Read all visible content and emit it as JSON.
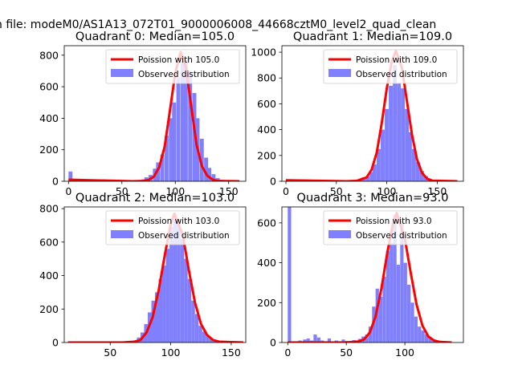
{
  "figure": {
    "suptitle": "n file: modeM0/AS1A13_072T01_9000006008_44668cztM0_level2_quad_clean"
  },
  "colors": {
    "poisson_line": "#ff0000",
    "histogram": "#8080ff",
    "axes": "#000000"
  },
  "chart_data": [
    {
      "type": "bar",
      "title": "Quadrant 0: Median=105.0",
      "xlim": [
        -4,
        166
      ],
      "ylim": [
        0,
        860
      ],
      "xticks": [
        0,
        50,
        100,
        150
      ],
      "yticks": [
        0,
        200,
        400,
        600,
        800
      ],
      "legend": {
        "placement": "top-right"
      },
      "series": [
        {
          "name": "Poission with 105.0",
          "kind": "line",
          "mean": 105.0,
          "peak": 820,
          "x": [
            0,
            60,
            70,
            75,
            80,
            85,
            90,
            95,
            100,
            105,
            110,
            115,
            120,
            125,
            130,
            135,
            140,
            160
          ],
          "y": [
            10,
            0,
            2,
            8,
            30,
            90,
            220,
            450,
            690,
            820,
            720,
            470,
            230,
            95,
            35,
            10,
            2,
            0
          ]
        },
        {
          "name": "Observed distribution",
          "kind": "histogram",
          "bin_width": 3.7,
          "bins": [
            [
              0,
              62
            ],
            [
              64,
              5
            ],
            [
              68,
              12
            ],
            [
              71,
              25
            ],
            [
              75,
              40
            ],
            [
              79,
              80
            ],
            [
              82,
              120
            ],
            [
              86,
              170
            ],
            [
              90,
              290
            ],
            [
              94,
              400
            ],
            [
              97,
              500
            ],
            [
              101,
              660
            ],
            [
              105,
              760
            ],
            [
              108,
              770
            ],
            [
              112,
              700
            ],
            [
              116,
              560
            ],
            [
              119,
              400
            ],
            [
              123,
              270
            ],
            [
              127,
              150
            ],
            [
              130,
              85
            ],
            [
              134,
              45
            ],
            [
              138,
              20
            ],
            [
              141,
              10
            ]
          ]
        }
      ]
    },
    {
      "type": "bar",
      "title": "Quadrant 1: Median=109.0",
      "xlim": [
        -4,
        176
      ],
      "ylim": [
        0,
        1050
      ],
      "xticks": [
        0,
        50,
        100,
        150
      ],
      "yticks": [
        0,
        200,
        400,
        600,
        800,
        1000
      ],
      "legend": {
        "placement": "top-right"
      },
      "series": [
        {
          "name": "Poission with 109.0",
          "kind": "line",
          "mean": 109.0,
          "peak": 1010,
          "x": [
            0,
            60,
            70,
            80,
            85,
            90,
            95,
            100,
            105,
            109,
            115,
            120,
            125,
            130,
            135,
            140,
            145,
            170
          ],
          "y": [
            8,
            0,
            3,
            30,
            90,
            220,
            450,
            720,
            930,
            1010,
            880,
            620,
            360,
            170,
            65,
            20,
            5,
            0
          ]
        },
        {
          "name": "Observed distribution",
          "kind": "histogram",
          "bin_width": 3.9,
          "bins": [
            [
              0,
              5
            ],
            [
              71,
              15
            ],
            [
              75,
              30
            ],
            [
              79,
              40
            ],
            [
              83,
              70
            ],
            [
              86,
              130
            ],
            [
              90,
              250
            ],
            [
              94,
              400
            ],
            [
              98,
              560
            ],
            [
              102,
              740
            ],
            [
              106,
              900
            ],
            [
              110,
              760
            ],
            [
              114,
              720
            ],
            [
              118,
              560
            ],
            [
              121,
              380
            ],
            [
              125,
              250
            ],
            [
              129,
              150
            ],
            [
              133,
              80
            ],
            [
              137,
              40
            ],
            [
              141,
              18
            ],
            [
              145,
              8
            ]
          ]
        }
      ]
    },
    {
      "type": "bar",
      "title": "Quadrant 2: Median=103.0",
      "xlim": [
        12,
        162
      ],
      "ylim": [
        0,
        810
      ],
      "xticks": [
        50,
        100,
        150
      ],
      "yticks": [
        0,
        200,
        400,
        600,
        800
      ],
      "legend": {
        "placement": "top-right"
      },
      "series": [
        {
          "name": "Poission with 103.0",
          "kind": "line",
          "mean": 103.0,
          "peak": 770,
          "x": [
            15,
            60,
            70,
            75,
            80,
            85,
            90,
            95,
            100,
            103,
            110,
            115,
            120,
            125,
            130,
            135,
            140,
            160
          ],
          "y": [
            0,
            0,
            5,
            15,
            60,
            150,
            310,
            520,
            710,
            770,
            640,
            430,
            240,
            110,
            45,
            15,
            5,
            0
          ]
        },
        {
          "name": "Observed distribution",
          "kind": "histogram",
          "bin_width": 3.0,
          "bins": [
            [
              66,
              5
            ],
            [
              69,
              12
            ],
            [
              72,
              30
            ],
            [
              75,
              60
            ],
            [
              78,
              110
            ],
            [
              81,
              180
            ],
            [
              84,
              250
            ],
            [
              87,
              300
            ],
            [
              90,
              380
            ],
            [
              93,
              460
            ],
            [
              96,
              560
            ],
            [
              99,
              690
            ],
            [
              102,
              740
            ],
            [
              105,
              720
            ],
            [
              108,
              620
            ],
            [
              111,
              500
            ],
            [
              114,
              380
            ],
            [
              117,
              250
            ],
            [
              120,
              170
            ],
            [
              123,
              100
            ],
            [
              126,
              65
            ],
            [
              129,
              40
            ],
            [
              132,
              25
            ],
            [
              135,
              15
            ],
            [
              138,
              8
            ]
          ]
        }
      ]
    },
    {
      "type": "bar",
      "title": "Quadrant 3: Median=93.0",
      "xlim": [
        -5,
        150
      ],
      "ylim": [
        0,
        680
      ],
      "xticks": [
        0,
        50,
        100
      ],
      "yticks": [
        0,
        200,
        400,
        600
      ],
      "legend": {
        "placement": "top-right"
      },
      "series": [
        {
          "name": "Poission with 93.0",
          "kind": "line",
          "mean": 93.0,
          "peak": 650,
          "x": [
            0,
            50,
            60,
            65,
            70,
            75,
            80,
            85,
            90,
            93,
            100,
            105,
            110,
            115,
            120,
            125,
            130,
            140
          ],
          "y": [
            0,
            0,
            5,
            15,
            50,
            130,
            270,
            450,
            600,
            650,
            520,
            350,
            190,
            85,
            30,
            10,
            3,
            0
          ]
        },
        {
          "name": "Observed distribution",
          "kind": "histogram",
          "bin_width": 2.9,
          "bins": [
            [
              0,
              680
            ],
            [
              9,
              10
            ],
            [
              13,
              15
            ],
            [
              16,
              20
            ],
            [
              19,
              10
            ],
            [
              22,
              40
            ],
            [
              25,
              25
            ],
            [
              28,
              10
            ],
            [
              34,
              20
            ],
            [
              40,
              10
            ],
            [
              46,
              15
            ],
            [
              49,
              8
            ],
            [
              55,
              12
            ],
            [
              60,
              18
            ],
            [
              63,
              30
            ],
            [
              66,
              40
            ],
            [
              69,
              80
            ],
            [
              72,
              180
            ],
            [
              75,
              270
            ],
            [
              78,
              230
            ],
            [
              81,
              330
            ],
            [
              84,
              460
            ],
            [
              87,
              500
            ],
            [
              90,
              640
            ],
            [
              93,
              390
            ],
            [
              96,
              610
            ],
            [
              99,
              400
            ],
            [
              102,
              290
            ],
            [
              105,
              200
            ],
            [
              108,
              130
            ],
            [
              111,
              80
            ],
            [
              114,
              60
            ],
            [
              117,
              40
            ],
            [
              120,
              25
            ],
            [
              123,
              15
            ],
            [
              126,
              8
            ]
          ]
        }
      ]
    }
  ]
}
